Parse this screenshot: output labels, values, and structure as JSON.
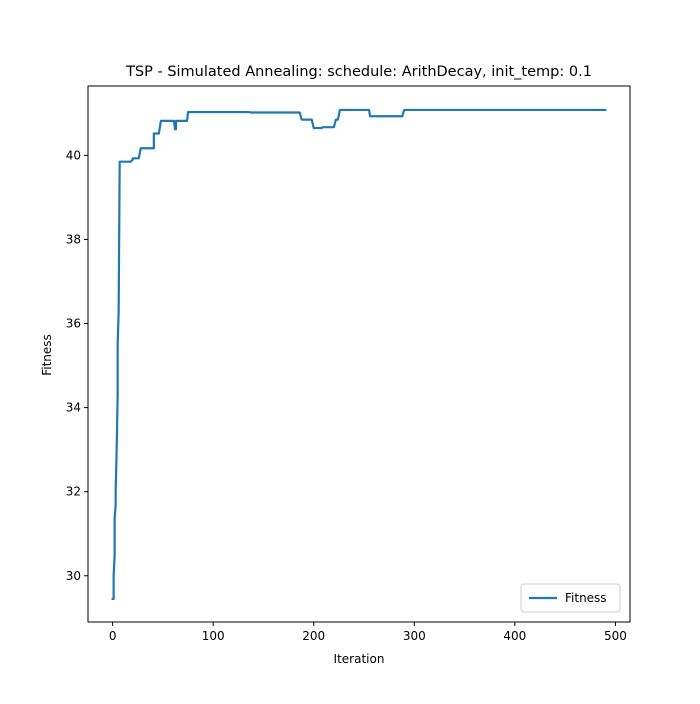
{
  "chart_data": {
    "type": "line",
    "title": "TSP - Simulated Annealing: schedule: ArithDecay, init_temp: 0.1",
    "xlabel": "Iteration",
    "ylabel": "Fitness",
    "xlim": [
      -24.5,
      514.5
    ],
    "ylim": [
      28.9,
      41.65
    ],
    "xticks": [
      0,
      100,
      200,
      300,
      400,
      500
    ],
    "yticks": [
      30,
      32,
      34,
      36,
      38,
      40
    ],
    "grid": false,
    "legend": "lower-right",
    "series": [
      {
        "name": "Fitness",
        "color": "#1f77b4",
        "x": [
          0,
          1,
          1,
          2,
          2,
          3,
          3,
          4,
          5,
          5,
          6,
          6,
          7,
          8,
          18,
          20,
          20,
          26,
          28,
          41,
          41,
          46,
          48,
          61,
          62,
          63,
          63,
          74,
          75,
          135,
          137,
          186,
          188,
          198,
          200,
          208,
          209,
          220,
          222,
          224,
          226,
          255,
          256,
          288,
          290,
          490
        ],
        "y": [
          29.45,
          29.45,
          30.0,
          30.5,
          31.35,
          31.7,
          32.0,
          33.0,
          34.3,
          35.5,
          36.3,
          36.35,
          39.85,
          39.85,
          39.85,
          39.9,
          39.93,
          39.93,
          40.17,
          40.17,
          40.52,
          40.52,
          40.82,
          40.82,
          40.62,
          40.62,
          40.82,
          40.82,
          41.03,
          41.03,
          41.02,
          41.02,
          40.85,
          40.85,
          40.65,
          40.65,
          40.67,
          40.67,
          40.85,
          40.85,
          41.08,
          41.08,
          40.93,
          40.93,
          41.08,
          41.08
        ]
      }
    ]
  }
}
